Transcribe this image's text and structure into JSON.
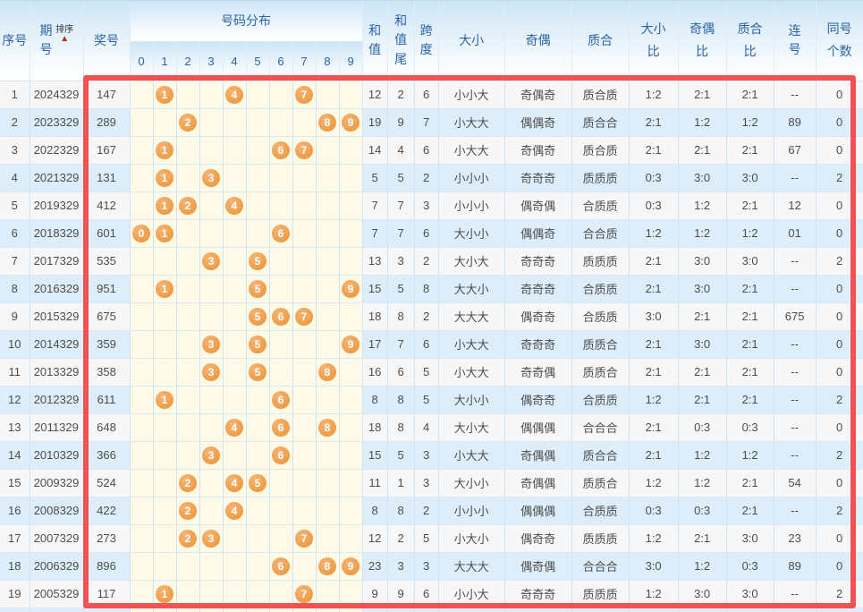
{
  "header": {
    "col_serial": "序号",
    "col_period": "期号",
    "sort_label": "排序",
    "sort_icon": "▲",
    "col_prize": "奖号",
    "col_distribution": "号码分布",
    "digit_headers": [
      "0",
      "1",
      "2",
      "3",
      "4",
      "5",
      "6",
      "7",
      "8",
      "9"
    ],
    "col_sum": "和值",
    "col_sum_tail": "和值尾",
    "col_span": "跨度",
    "col_size": "大小",
    "col_parity": "奇偶",
    "col_prime": "质合",
    "col_size_ratio": "大小比",
    "col_parity_ratio": "奇偶比",
    "col_prime_ratio": "质合比",
    "col_consecutive": "连号",
    "col_same_count": "同号个数"
  },
  "colors": {
    "header_text": "#2b64a7",
    "highlight_border": "#f25252",
    "ball": "#f0a152",
    "row_even_bg": "#ddeefa",
    "row_odd_bg": "#f7f7f7",
    "distribution_bg": "#fdfbe7",
    "sort_arrow": "#b02b2b"
  },
  "table": {
    "rows": [
      {
        "seq": "1",
        "period": "2024329",
        "prize": "147",
        "balls": [
          1,
          4,
          7
        ],
        "sum": "12",
        "tail": "2",
        "span": "6",
        "size": "小小大",
        "parity": "奇偶奇",
        "prime": "质合质",
        "size_ratio": "1:2",
        "parity_ratio": "2:1",
        "prime_ratio": "2:1",
        "consecutive": "--",
        "same_count": "0"
      },
      {
        "seq": "2",
        "period": "2023329",
        "prize": "289",
        "balls": [
          2,
          8,
          9
        ],
        "sum": "19",
        "tail": "9",
        "span": "7",
        "size": "小大大",
        "parity": "偶偶奇",
        "prime": "质合合",
        "size_ratio": "2:1",
        "parity_ratio": "1:2",
        "prime_ratio": "1:2",
        "consecutive": "89",
        "same_count": "0"
      },
      {
        "seq": "3",
        "period": "2022329",
        "prize": "167",
        "balls": [
          1,
          6,
          7
        ],
        "sum": "14",
        "tail": "4",
        "span": "6",
        "size": "小大大",
        "parity": "奇偶奇",
        "prime": "质合质",
        "size_ratio": "2:1",
        "parity_ratio": "2:1",
        "prime_ratio": "2:1",
        "consecutive": "67",
        "same_count": "0"
      },
      {
        "seq": "4",
        "period": "2021329",
        "prize": "131",
        "balls": [
          1,
          3
        ],
        "sum": "5",
        "tail": "5",
        "span": "2",
        "size": "小小小",
        "parity": "奇奇奇",
        "prime": "质质质",
        "size_ratio": "0:3",
        "parity_ratio": "3:0",
        "prime_ratio": "3:0",
        "consecutive": "--",
        "same_count": "2"
      },
      {
        "seq": "5",
        "period": "2019329",
        "prize": "412",
        "balls": [
          1,
          2,
          4
        ],
        "sum": "7",
        "tail": "7",
        "span": "3",
        "size": "小小小",
        "parity": "偶奇偶",
        "prime": "合质质",
        "size_ratio": "0:3",
        "parity_ratio": "1:2",
        "prime_ratio": "2:1",
        "consecutive": "12",
        "same_count": "0"
      },
      {
        "seq": "6",
        "period": "2018329",
        "prize": "601",
        "balls": [
          0,
          1,
          6
        ],
        "sum": "7",
        "tail": "7",
        "span": "6",
        "size": "大小小",
        "parity": "偶偶奇",
        "prime": "合合质",
        "size_ratio": "1:2",
        "parity_ratio": "1:2",
        "prime_ratio": "1:2",
        "consecutive": "01",
        "same_count": "0"
      },
      {
        "seq": "7",
        "period": "2017329",
        "prize": "535",
        "balls": [
          3,
          5
        ],
        "sum": "13",
        "tail": "3",
        "span": "2",
        "size": "大小大",
        "parity": "奇奇奇",
        "prime": "质质质",
        "size_ratio": "2:1",
        "parity_ratio": "3:0",
        "prime_ratio": "3:0",
        "consecutive": "--",
        "same_count": "2"
      },
      {
        "seq": "8",
        "period": "2016329",
        "prize": "951",
        "balls": [
          1,
          5,
          9
        ],
        "sum": "15",
        "tail": "5",
        "span": "8",
        "size": "大大小",
        "parity": "奇奇奇",
        "prime": "合质质",
        "size_ratio": "2:1",
        "parity_ratio": "3:0",
        "prime_ratio": "2:1",
        "consecutive": "--",
        "same_count": "0"
      },
      {
        "seq": "9",
        "period": "2015329",
        "prize": "675",
        "balls": [
          5,
          6,
          7
        ],
        "sum": "18",
        "tail": "8",
        "span": "2",
        "size": "大大大",
        "parity": "偶奇奇",
        "prime": "合质质",
        "size_ratio": "3:0",
        "parity_ratio": "2:1",
        "prime_ratio": "2:1",
        "consecutive": "675",
        "same_count": "0"
      },
      {
        "seq": "10",
        "period": "2014329",
        "prize": "359",
        "balls": [
          3,
          5,
          9
        ],
        "sum": "17",
        "tail": "7",
        "span": "6",
        "size": "小大大",
        "parity": "奇奇奇",
        "prime": "质质合",
        "size_ratio": "2:1",
        "parity_ratio": "3:0",
        "prime_ratio": "2:1",
        "consecutive": "--",
        "same_count": "0"
      },
      {
        "seq": "11",
        "period": "2013329",
        "prize": "358",
        "balls": [
          3,
          5,
          8
        ],
        "sum": "16",
        "tail": "6",
        "span": "5",
        "size": "小大大",
        "parity": "奇奇偶",
        "prime": "质质合",
        "size_ratio": "2:1",
        "parity_ratio": "2:1",
        "prime_ratio": "2:1",
        "consecutive": "--",
        "same_count": "0"
      },
      {
        "seq": "12",
        "period": "2012329",
        "prize": "611",
        "balls": [
          1,
          6
        ],
        "sum": "8",
        "tail": "8",
        "span": "5",
        "size": "大小小",
        "parity": "偶奇奇",
        "prime": "合质质",
        "size_ratio": "1:2",
        "parity_ratio": "2:1",
        "prime_ratio": "2:1",
        "consecutive": "--",
        "same_count": "2"
      },
      {
        "seq": "13",
        "period": "2011329",
        "prize": "648",
        "balls": [
          4,
          6,
          8
        ],
        "sum": "18",
        "tail": "8",
        "span": "4",
        "size": "大小大",
        "parity": "偶偶偶",
        "prime": "合合合",
        "size_ratio": "2:1",
        "parity_ratio": "0:3",
        "prime_ratio": "0:3",
        "consecutive": "--",
        "same_count": "0"
      },
      {
        "seq": "14",
        "period": "2010329",
        "prize": "366",
        "balls": [
          3,
          6
        ],
        "sum": "15",
        "tail": "5",
        "span": "3",
        "size": "小大大",
        "parity": "奇偶偶",
        "prime": "质合合",
        "size_ratio": "2:1",
        "parity_ratio": "1:2",
        "prime_ratio": "1:2",
        "consecutive": "--",
        "same_count": "2"
      },
      {
        "seq": "15",
        "period": "2009329",
        "prize": "524",
        "balls": [
          2,
          4,
          5
        ],
        "sum": "11",
        "tail": "1",
        "span": "3",
        "size": "大小小",
        "parity": "奇偶偶",
        "prime": "质质合",
        "size_ratio": "1:2",
        "parity_ratio": "1:2",
        "prime_ratio": "2:1",
        "consecutive": "54",
        "same_count": "0"
      },
      {
        "seq": "16",
        "period": "2008329",
        "prize": "422",
        "balls": [
          2,
          4
        ],
        "sum": "8",
        "tail": "8",
        "span": "2",
        "size": "小小小",
        "parity": "偶偶偶",
        "prime": "合质质",
        "size_ratio": "0:3",
        "parity_ratio": "0:3",
        "prime_ratio": "2:1",
        "consecutive": "--",
        "same_count": "2"
      },
      {
        "seq": "17",
        "period": "2007329",
        "prize": "273",
        "balls": [
          2,
          3,
          7
        ],
        "sum": "12",
        "tail": "2",
        "span": "5",
        "size": "小大小",
        "parity": "偶奇奇",
        "prime": "质质质",
        "size_ratio": "1:2",
        "parity_ratio": "2:1",
        "prime_ratio": "3:0",
        "consecutive": "23",
        "same_count": "0"
      },
      {
        "seq": "18",
        "period": "2006329",
        "prize": "896",
        "balls": [
          6,
          8,
          9
        ],
        "sum": "23",
        "tail": "3",
        "span": "3",
        "size": "大大大",
        "parity": "偶奇偶",
        "prime": "合合合",
        "size_ratio": "3:0",
        "parity_ratio": "1:2",
        "prime_ratio": "0:3",
        "consecutive": "89",
        "same_count": "0"
      },
      {
        "seq": "19",
        "period": "2005329",
        "prize": "117",
        "balls": [
          1,
          7
        ],
        "sum": "9",
        "tail": "9",
        "span": "6",
        "size": "小小大",
        "parity": "奇奇奇",
        "prime": "质质质",
        "size_ratio": "1:2",
        "parity_ratio": "3:0",
        "prime_ratio": "3:0",
        "consecutive": "--",
        "same_count": "2"
      }
    ]
  }
}
